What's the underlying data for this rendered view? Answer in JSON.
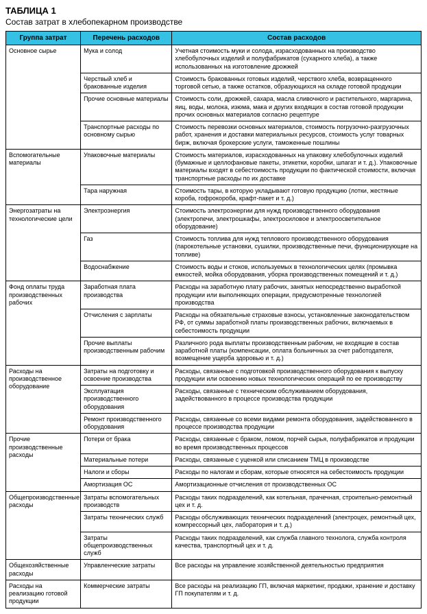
{
  "title_number": "ТАБЛИЦА 1",
  "title_caption": "Состав затрат в хлебопекарном производстве",
  "headers": {
    "group": "Группа затрат",
    "list": "Перечень расходов",
    "comp": "Состав расходов"
  },
  "groups": [
    {
      "name": "Основное сырье",
      "rows": [
        {
          "list": "Мука и солод",
          "comp": "Учетная стоимость муки и солода, израсходованных на производство хлебобулочных изделий и полуфабрикатов (сухарного хлеба), а также использованных на изготовление дрожжей"
        },
        {
          "list": "Черствый хлеб и бракованные изделия",
          "comp": "Стоимость бракованных готовых изделий, черствого хлеба, возвращенного торговой сетью, а также остатков, образующихся на складе готовой продукции"
        },
        {
          "list": "Прочие основные материалы",
          "comp": "Стоимость соли, дрожжей, сахара, масла сливочного и растительного, маргарина, яиц, воды, молока, изюма, мака и других входящих в состав готовой продукции прочих основных материалов согласно рецептуре"
        },
        {
          "list": "Транспортные расходы по основному сырью",
          "comp": "Стоимость перевозки основных материалов, стоимость погрузочно-разгрузочных работ, хранения и доставки материальных ресурсов, стоимость услуг товарных бирж, включая брокерские услуги, таможенные пошлины"
        }
      ]
    },
    {
      "name": "Вспомогательные материалы",
      "rows": [
        {
          "list": "Упаковочные материалы",
          "comp": "Стоимость материалов, израсходованных на упаковку хлебобулочных изделий (бумажные и целлофановые пакеты, этикетки, коробки, шпагат и т. д.). Упаковочные материалы входят в себестоимость продукции по фактической стоимости, включая транспортные расходы по их доставке"
        },
        {
          "list": "Тара наружная",
          "comp": "Стоимость тары, в которую укладывают готовую продукцию (лотки, жестяные короба, гофрокороба, крафт-пакет и т. д.)"
        }
      ]
    },
    {
      "name": "Энергозатраты на технологические цели",
      "rows": [
        {
          "list": "Электроэнергия",
          "comp": "Стоимость электроэнергии для нужд производственного оборудования (электропечи, электрошкафы, электросиловое и электроосветительное оборудование)"
        },
        {
          "list": "Газ",
          "comp": "Стоимость топлива для нужд теплового производственного оборудования (парокотельные установки, сушилки, производственные печи, функционирующие на топливе)"
        },
        {
          "list": "Водоснабжение",
          "comp": "Стоимость воды и стоков, используемых в технологических целях (промывка емкостей, мойка оборудования, уборка производственных помещений и т. д.)"
        }
      ]
    },
    {
      "name": "Фонд оплаты труда производственных рабочих",
      "rows": [
        {
          "list": "Заработная плата производства",
          "comp": "Расходы на заработную плату рабочих, занятых непосредственно выработкой продукции или выполняющих операции, предусмотренные технологией производства"
        },
        {
          "list": "Отчисления с зарплаты",
          "comp": "Расходы на обязательные страховые взносы, установленные законодательством РФ, от суммы заработной платы производственных рабочих, включаемых в себестоимость продукции"
        },
        {
          "list": "Прочие выплаты производственным рабочим",
          "comp": "Различного рода выплаты производственным рабочим, не входящие в состав заработной платы (компенсации, оплата больничных за счет работодателя, возмещение ущерба здоровью и т. д.)"
        }
      ]
    },
    {
      "name": "Расходы на производственное оборудование",
      "rows": [
        {
          "list": "Затраты на подготовку и освоение производства",
          "comp": "Расходы, связанные с подготовкой производственного оборудования к выпуску продукции или освоению новых технологических операций по ее производству"
        },
        {
          "list": "Эксплуатация производственного оборудования",
          "comp": "Расходы, связанные с техническим обслуживанием оборудования, задействованного в процессе производства продукции"
        },
        {
          "list": "Ремонт производственного оборудования",
          "comp": "Расходы, связанные со всеми видами ремонта оборудования, задействованного в процессе производства продукции"
        }
      ]
    },
    {
      "name": "Прочие производственные расходы",
      "rows": [
        {
          "list": "Потери от брака",
          "comp": "Расходы, связанные с браком, ломом, порчей сырья, полуфабрикатов и продукции во время производственных процессов"
        },
        {
          "list": "Материальные потери",
          "comp": "Расходы, связанные с уценкой или списанием ТМЦ в производстве"
        },
        {
          "list": "Налоги и сборы",
          "comp": "Расходы по налогам и сборам, которые относятся на себестоимость продукции"
        },
        {
          "list": "Амортизация ОС",
          "comp": "Амортизационные отчисления от производственных ОС"
        }
      ]
    },
    {
      "name": "Общепроизводственные расходы",
      "rows": [
        {
          "list": "Затраты вспомогательных производств",
          "comp": "Расходы таких подразделений, как котельная, прачечная, строительно-ремонтный цех и т. д."
        },
        {
          "list": "Затраты технических служб",
          "comp": "Расходы обслуживающих технических подразделений (электроцех, ремонтный цех, компрессорный цех, лаборатория и т. д.)"
        },
        {
          "list": "Затраты общепроизводственных служб",
          "comp": "Расходы таких подразделений, как служба главного технолога, служба контроля качества, транспортный цех и т. д."
        }
      ]
    },
    {
      "name": "Общехозяйственные расходы",
      "rows": [
        {
          "list": "Управленческие затраты",
          "comp": "Все расходы на управление хозяйственной деятельностью предприятия"
        }
      ]
    },
    {
      "name": "Расходы на реализацию готовой продукции",
      "rows": [
        {
          "list": "Коммерческие затраты",
          "comp": "Все расходы на реализацию ГП, включая маркетинг, продажи, хранение и доставку ГП покупателям и т. д."
        }
      ]
    }
  ]
}
